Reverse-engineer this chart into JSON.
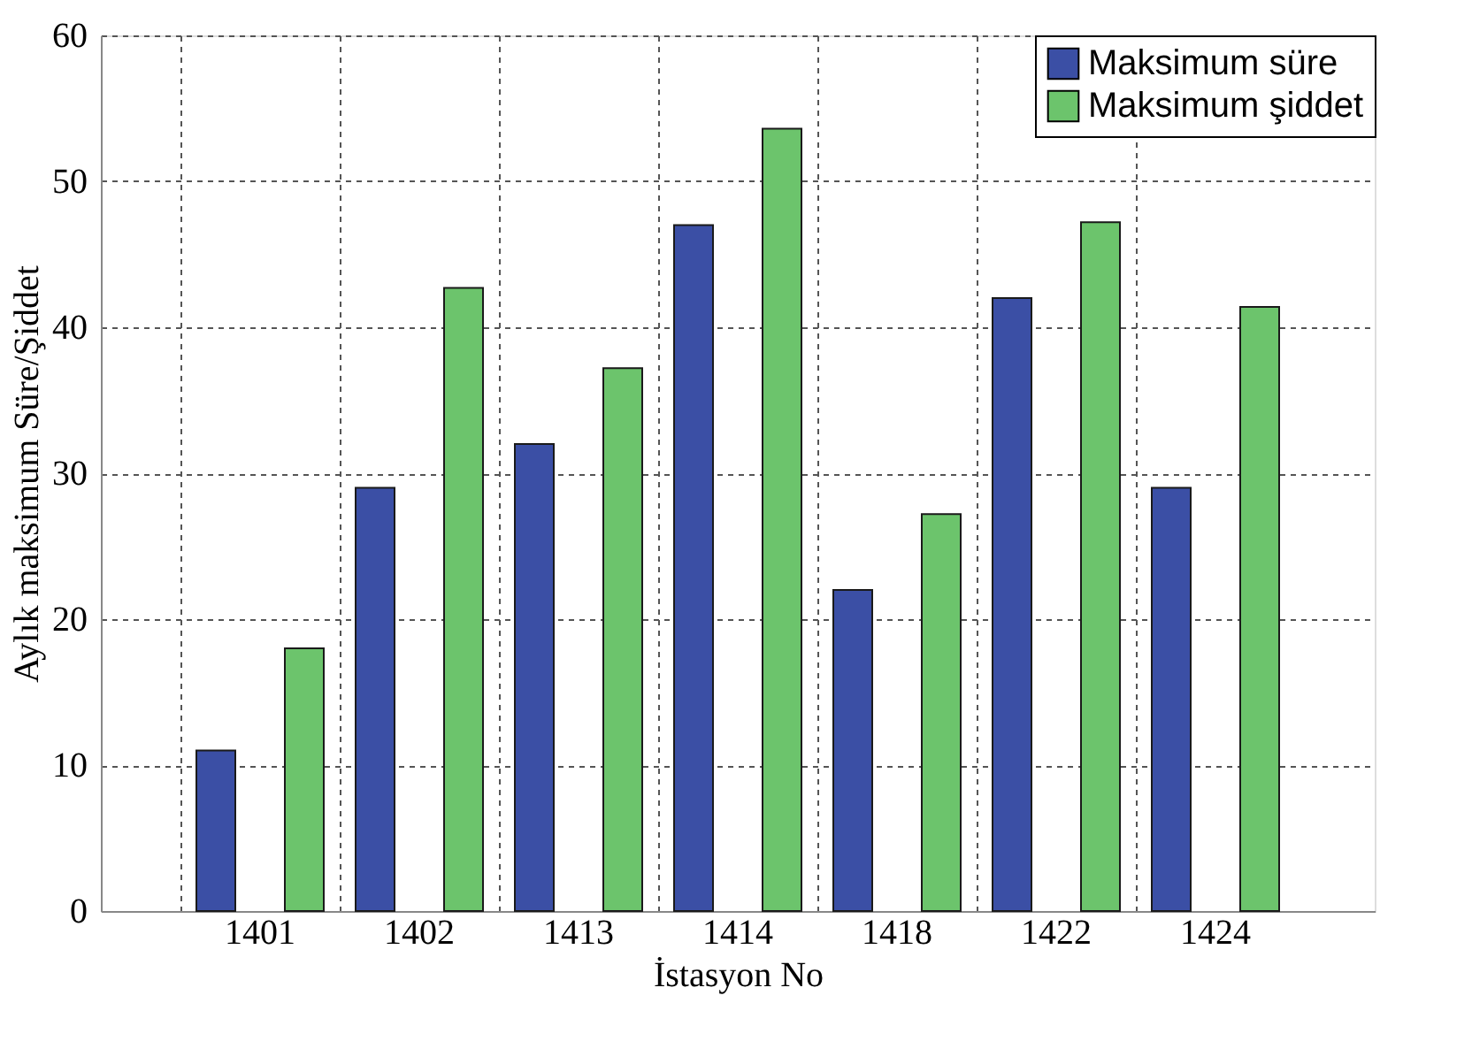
{
  "chart_data": {
    "type": "bar",
    "xlabel": "İstasyon No",
    "ylabel": "Aylık maksimum Süre/Şiddet",
    "categories": [
      "1401",
      "1402",
      "1413",
      "1414",
      "1418",
      "1422",
      "1424"
    ],
    "series": [
      {
        "name": "Maksimum süre",
        "color": "#3b4fa5",
        "values": [
          11,
          29,
          32,
          47,
          22,
          42,
          29
        ]
      },
      {
        "name": "Maksimum şiddet",
        "color": "#6cc46c",
        "values": [
          18,
          42.7,
          37.2,
          53.6,
          27.2,
          47.2,
          41.4
        ]
      }
    ],
    "ylim": [
      0,
      60
    ],
    "yticks": [
      0,
      10,
      20,
      30,
      40,
      50,
      60
    ],
    "grid": true,
    "legend": "top right"
  }
}
